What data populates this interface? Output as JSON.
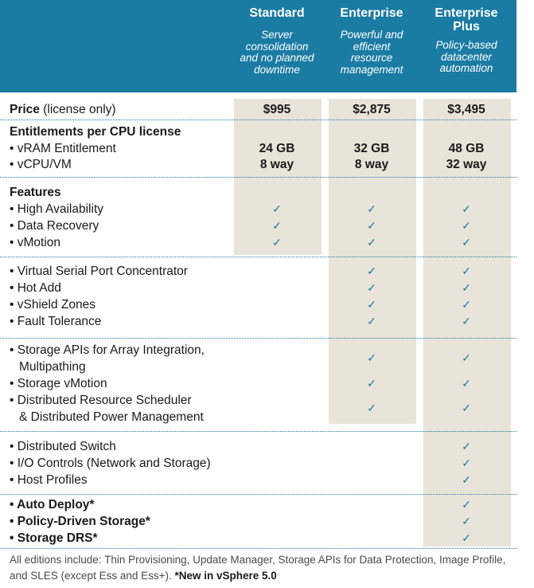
{
  "editions": [
    {
      "name": "Standard",
      "desc": [
        "Server",
        "consolidation",
        "and no planned",
        "downtime"
      ]
    },
    {
      "name": "Enterprise",
      "desc": [
        "Powerful and",
        "efficient",
        "resource",
        "management"
      ]
    },
    {
      "name": "Enterprise\nPlus",
      "name_lines": [
        "Enterprise",
        "Plus"
      ],
      "desc": [
        "Policy-based",
        "datacenter",
        "automation"
      ]
    }
  ],
  "price": {
    "label": "Price",
    "sub": "(license only)",
    "values": [
      "$995",
      "$2,875",
      "$3,495"
    ]
  },
  "entitlements": {
    "heading": "Entitlements per CPU license",
    "rows": [
      {
        "label": "• vRAM Entitlement",
        "values": [
          "24 GB",
          "32 GB",
          "48 GB"
        ]
      },
      {
        "label": "• vCPU/VM",
        "values": [
          "8 way",
          "8 way",
          "32 way"
        ]
      }
    ]
  },
  "features_heading": "Features",
  "check_glyph": "✓",
  "groups": [
    {
      "rows": [
        {
          "label": "• High Availability",
          "checks": [
            true,
            true,
            true
          ]
        },
        {
          "label": "• Data Recovery",
          "checks": [
            true,
            true,
            true
          ]
        },
        {
          "label": "• vMotion",
          "checks": [
            true,
            true,
            true
          ]
        }
      ]
    },
    {
      "rows": [
        {
          "label": "• Virtual Serial Port Concentrator",
          "checks": [
            false,
            true,
            true
          ]
        },
        {
          "label": "• Hot Add",
          "checks": [
            false,
            true,
            true
          ]
        },
        {
          "label": "• vShield Zones",
          "checks": [
            false,
            true,
            true
          ]
        },
        {
          "label": "• Fault Tolerance",
          "checks": [
            false,
            true,
            true
          ]
        }
      ]
    },
    {
      "rows": [
        {
          "label": "• Storage APIs for Array Integration,",
          "label2": "Multipathing",
          "checks": [
            false,
            true,
            true
          ]
        },
        {
          "label": "• Storage vMotion",
          "checks": [
            false,
            true,
            true
          ]
        },
        {
          "label": "• Distributed Resource Scheduler",
          "label2": "& Distributed Power Management",
          "checks": [
            false,
            true,
            true
          ]
        }
      ]
    },
    {
      "rows": [
        {
          "label": "• Distributed Switch",
          "checks": [
            false,
            false,
            true
          ]
        },
        {
          "label": "• I/O Controls (Network and Storage)",
          "checks": [
            false,
            false,
            true
          ]
        },
        {
          "label": "• Host Profiles",
          "checks": [
            false,
            false,
            true
          ]
        }
      ]
    },
    {
      "bold": true,
      "rows": [
        {
          "label": "• Auto Deploy*",
          "checks": [
            false,
            false,
            true
          ]
        },
        {
          "label": "• Policy-Driven Storage*",
          "checks": [
            false,
            false,
            true
          ]
        },
        {
          "label": "• Storage DRS*",
          "checks": [
            false,
            false,
            true
          ]
        }
      ]
    }
  ],
  "footer": {
    "text": "All editions include: Thin Provisioning, Update Manager, Storage APIs for Data Protection, Image Profile, and SLES (except Ess and Ess+).",
    "new_note": "*New in vSphere 5.0"
  },
  "colors": {
    "header": "#1a7ba3",
    "shade": "#e9e4d9",
    "check": "#1a7ba3"
  }
}
